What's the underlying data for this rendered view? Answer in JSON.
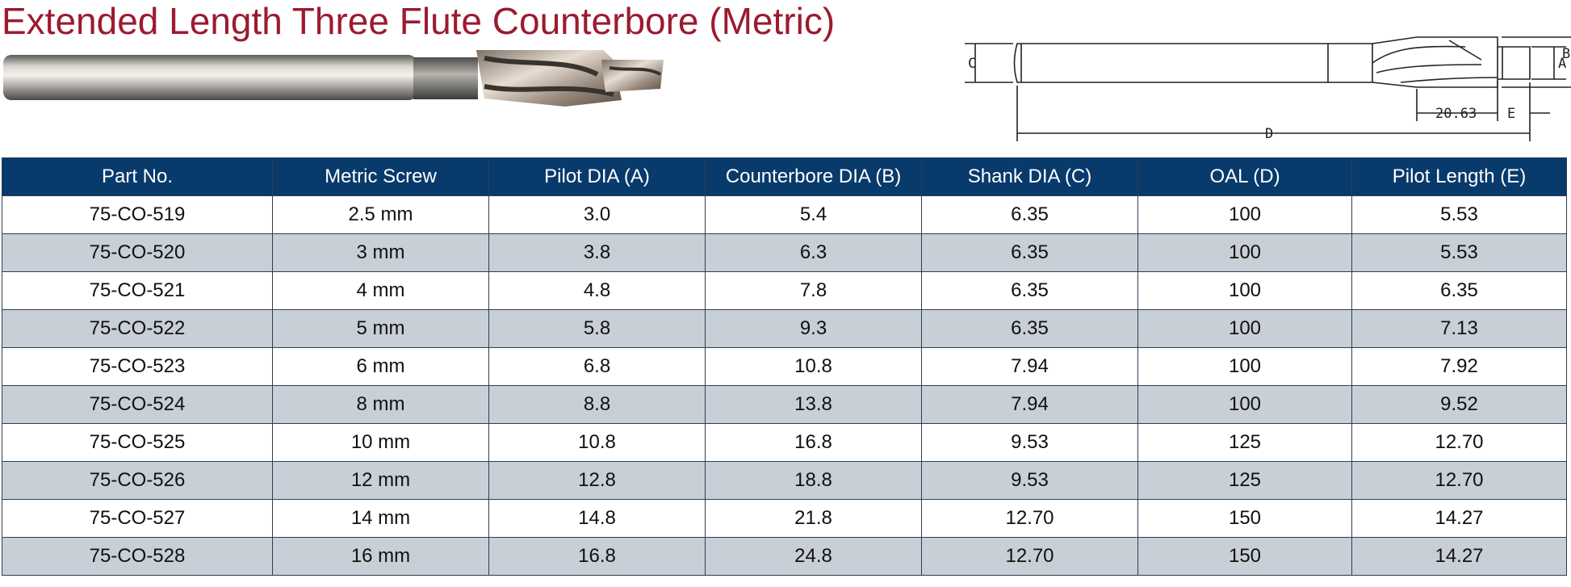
{
  "title": "Extended Length Three Flute Counterbore (Metric)",
  "diagram": {
    "label_c": "C",
    "label_a": "A",
    "label_b": "B",
    "label_d": "D",
    "label_e": "E",
    "dimension_value": "20.63"
  },
  "table": {
    "columns": [
      "Part No.",
      "Metric Screw",
      "Pilot DIA (A)",
      "Counterbore DIA (B)",
      "Shank DIA (C)",
      "OAL (D)",
      "Pilot Length (E)"
    ],
    "rows": [
      [
        "75-CO-519",
        "2.5 mm",
        "3.0",
        "5.4",
        "6.35",
        "100",
        "5.53"
      ],
      [
        "75-CO-520",
        "3 mm",
        "3.8",
        "6.3",
        "6.35",
        "100",
        "5.53"
      ],
      [
        "75-CO-521",
        "4 mm",
        "4.8",
        "7.8",
        "6.35",
        "100",
        "6.35"
      ],
      [
        "75-CO-522",
        "5 mm",
        "5.8",
        "9.3",
        "6.35",
        "100",
        "7.13"
      ],
      [
        "75-CO-523",
        "6 mm",
        "6.8",
        "10.8",
        "7.94",
        "100",
        "7.92"
      ],
      [
        "75-CO-524",
        "8 mm",
        "8.8",
        "13.8",
        "7.94",
        "100",
        "9.52"
      ],
      [
        "75-CO-525",
        "10 mm",
        "10.8",
        "16.8",
        "9.53",
        "125",
        "12.70"
      ],
      [
        "75-CO-526",
        "12 mm",
        "12.8",
        "18.8",
        "9.53",
        "125",
        "12.70"
      ],
      [
        "75-CO-527",
        "14 mm",
        "14.8",
        "21.8",
        "12.70",
        "150",
        "14.27"
      ],
      [
        "75-CO-528",
        "16 mm",
        "16.8",
        "24.8",
        "12.70",
        "150",
        "14.27"
      ]
    ]
  },
  "colors": {
    "title": "#9b1b30",
    "header_bg": "#083a6b",
    "stripe": "#c8cfd6"
  }
}
